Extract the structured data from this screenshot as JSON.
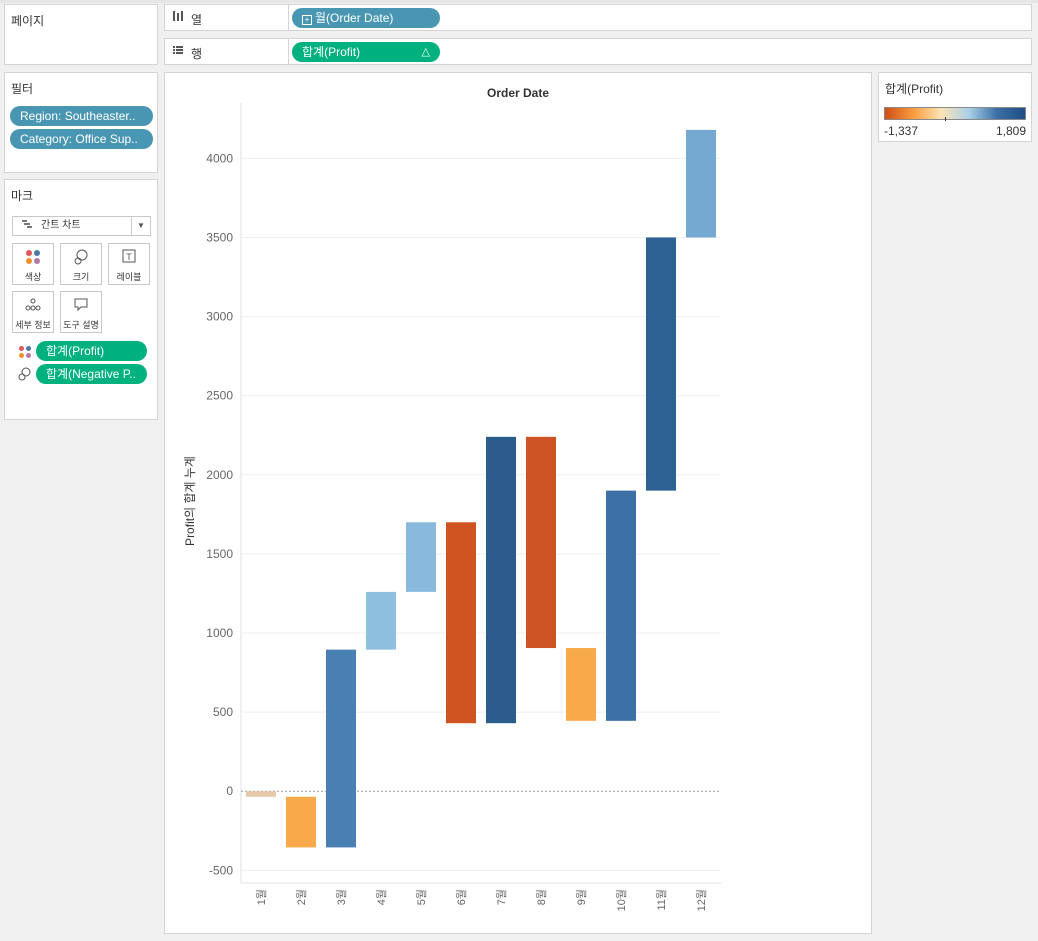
{
  "pages_panel": {
    "title": "페이지"
  },
  "columns_shelf": {
    "label": "열",
    "icon": "columns-icon",
    "pill": "월(Order Date)"
  },
  "rows_shelf": {
    "label": "행",
    "icon": "rows-icon",
    "pill": "합계(Profit)",
    "pill_icon": "delta-icon"
  },
  "filters_panel": {
    "title": "필터",
    "items": [
      "Region: Southeaster..",
      "Category: Office Sup.."
    ]
  },
  "marks_panel": {
    "title": "마크",
    "mark_type": "간트 차트",
    "buttons": [
      "색상",
      "크기",
      "레이블",
      "세부 정보",
      "도구 설명"
    ],
    "fields": [
      "합계(Profit)",
      "합계(Negative P.."
    ]
  },
  "legend": {
    "title": "합계(Profit)",
    "min_label": "-1,337",
    "max_label": "1,809",
    "colors": [
      "#cf4f15",
      "#f89b3e",
      "#fde3b4",
      "#a9d0e8",
      "#3a6fa6",
      "#1e4e85"
    ]
  },
  "chart_data": {
    "type": "bar",
    "title": "Order Date",
    "ylabel": "Profit의 합계 누계",
    "categories": [
      "1월",
      "2월",
      "3월",
      "4월",
      "5월",
      "6월",
      "7월",
      "8월",
      "9월",
      "10월",
      "11월",
      "12월"
    ],
    "y_ticks": [
      "4000",
      "3500",
      "3000",
      "2500",
      "2000",
      "1500",
      "1000",
      "500",
      "0",
      "-500"
    ],
    "ylim": [
      -580,
      4350
    ],
    "series": [
      {
        "bars": [
          {
            "low": -35,
            "high": 0,
            "color": "#e6c9a8"
          },
          {
            "low": -355,
            "high": -35,
            "color": "#f8a94a"
          },
          {
            "low": -355,
            "high": 895,
            "color": "#4a7fb3"
          },
          {
            "low": 895,
            "high": 1260,
            "color": "#8dbfdf"
          },
          {
            "low": 1260,
            "high": 1700,
            "color": "#87badc"
          },
          {
            "low": 430,
            "high": 1700,
            "color": "#cf5422"
          },
          {
            "low": 430,
            "high": 2240,
            "color": "#2b5c8c"
          },
          {
            "low": 905,
            "high": 2240,
            "color": "#cd5324"
          },
          {
            "low": 445,
            "high": 905,
            "color": "#f8a94a"
          },
          {
            "low": 445,
            "high": 1900,
            "color": "#3e70a8"
          },
          {
            "low": 1900,
            "high": 3500,
            "color": "#2e6193"
          },
          {
            "low": 3500,
            "high": 4180,
            "color": "#76a9d1"
          }
        ]
      }
    ]
  }
}
